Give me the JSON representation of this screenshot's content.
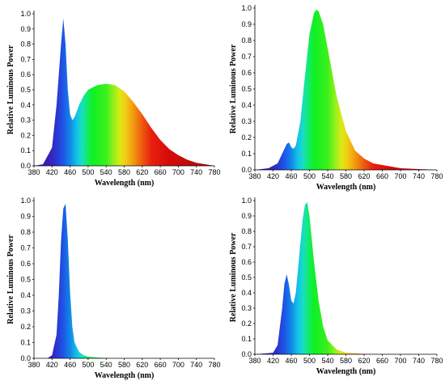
{
  "chart_data": [
    {
      "type": "area",
      "xlabel": "Wavelength (nm)",
      "ylabel": "Relative Luminous Power",
      "xlim": [
        380,
        780
      ],
      "ylim": [
        0,
        1.0
      ],
      "xticks": [
        "380",
        "420",
        "460",
        "500",
        "540",
        "580",
        "620",
        "660",
        "700",
        "740",
        "780"
      ],
      "yticks": [
        "0.0",
        "0.1",
        "0.2",
        "0.3",
        "0.4",
        "0.5",
        "0.6",
        "0.7",
        "0.8",
        "0.9",
        "1.0"
      ],
      "fill": "spectrum gradient",
      "series": [
        {
          "x": [
            380,
            400,
            420,
            430,
            440,
            445,
            450,
            455,
            460,
            465,
            470,
            480,
            490,
            500,
            520,
            540,
            560,
            580,
            600,
            620,
            640,
            660,
            680,
            700,
            720,
            740,
            760,
            780
          ],
          "y": [
            0.0,
            0.01,
            0.12,
            0.4,
            0.8,
            0.97,
            0.8,
            0.5,
            0.34,
            0.3,
            0.32,
            0.4,
            0.46,
            0.5,
            0.53,
            0.54,
            0.53,
            0.49,
            0.42,
            0.34,
            0.25,
            0.17,
            0.11,
            0.07,
            0.04,
            0.02,
            0.01,
            0.0
          ]
        }
      ]
    },
    {
      "type": "area",
      "xlabel": "Wavelength (nm)",
      "ylabel": "Relative Luminous Power",
      "xlim": [
        380,
        780
      ],
      "ylim": [
        0,
        1.0
      ],
      "xticks": [
        "380",
        "420",
        "460",
        "500",
        "540",
        "580",
        "620",
        "660",
        "700",
        "740",
        "780"
      ],
      "yticks": [
        "0.0",
        "0.1",
        "0.2",
        "0.3",
        "0.4",
        "0.5",
        "0.6",
        "0.7",
        "0.8",
        "0.9",
        "1.0"
      ],
      "fill": "spectrum gradient",
      "series": [
        {
          "x": [
            380,
            410,
            430,
            440,
            450,
            455,
            460,
            465,
            470,
            480,
            490,
            500,
            510,
            515,
            520,
            530,
            540,
            550,
            560,
            580,
            600,
            620,
            640,
            660,
            680,
            700,
            740,
            780
          ],
          "y": [
            0.0,
            0.01,
            0.04,
            0.1,
            0.16,
            0.17,
            0.14,
            0.13,
            0.15,
            0.3,
            0.58,
            0.84,
            0.97,
            0.99,
            0.98,
            0.9,
            0.75,
            0.6,
            0.45,
            0.24,
            0.12,
            0.07,
            0.04,
            0.03,
            0.02,
            0.01,
            0.005,
            0.0
          ]
        }
      ]
    },
    {
      "type": "area",
      "xlabel": "Wavelength (nm)",
      "ylabel": "Relative Luminous Power",
      "xlim": [
        380,
        780
      ],
      "ylim": [
        0,
        1.0
      ],
      "xticks": [
        "380",
        "420",
        "460",
        "500",
        "540",
        "580",
        "620",
        "660",
        "700",
        "740",
        "780"
      ],
      "yticks": [
        "0.0",
        "0.1",
        "0.2",
        "0.3",
        "0.4",
        "0.5",
        "0.6",
        "0.7",
        "0.8",
        "0.9",
        "1.0"
      ],
      "fill": "spectrum gradient",
      "series": [
        {
          "x": [
            380,
            410,
            420,
            430,
            435,
            440,
            445,
            450,
            455,
            460,
            465,
            470,
            480,
            490,
            500,
            520,
            560,
            780
          ],
          "y": [
            0.0,
            0.0,
            0.02,
            0.15,
            0.4,
            0.75,
            0.95,
            0.98,
            0.75,
            0.42,
            0.2,
            0.1,
            0.04,
            0.02,
            0.01,
            0.005,
            0.0,
            0.0
          ]
        }
      ]
    },
    {
      "type": "area",
      "xlabel": "Wavelength (nm)",
      "ylabel": "Relative Luminous Power",
      "xlim": [
        380,
        780
      ],
      "ylim": [
        0,
        1.0
      ],
      "xticks": [
        "380",
        "420",
        "460",
        "500",
        "540",
        "580",
        "620",
        "660",
        "700",
        "740",
        "780"
      ],
      "yticks": [
        "0.0",
        "0.1",
        "0.2",
        "0.3",
        "0.4",
        "0.5",
        "0.6",
        "0.7",
        "0.8",
        "0.9",
        "1.0"
      ],
      "fill": "spectrum gradient",
      "series": [
        {
          "x": [
            380,
            420,
            430,
            440,
            445,
            450,
            455,
            460,
            465,
            470,
            480,
            485,
            490,
            495,
            500,
            510,
            520,
            530,
            540,
            560,
            580,
            600,
            640,
            780
          ],
          "y": [
            0.0,
            0.01,
            0.06,
            0.3,
            0.46,
            0.52,
            0.45,
            0.35,
            0.33,
            0.4,
            0.72,
            0.88,
            0.97,
            0.99,
            0.9,
            0.6,
            0.35,
            0.18,
            0.09,
            0.03,
            0.01,
            0.005,
            0.0,
            0.0
          ]
        }
      ]
    }
  ]
}
